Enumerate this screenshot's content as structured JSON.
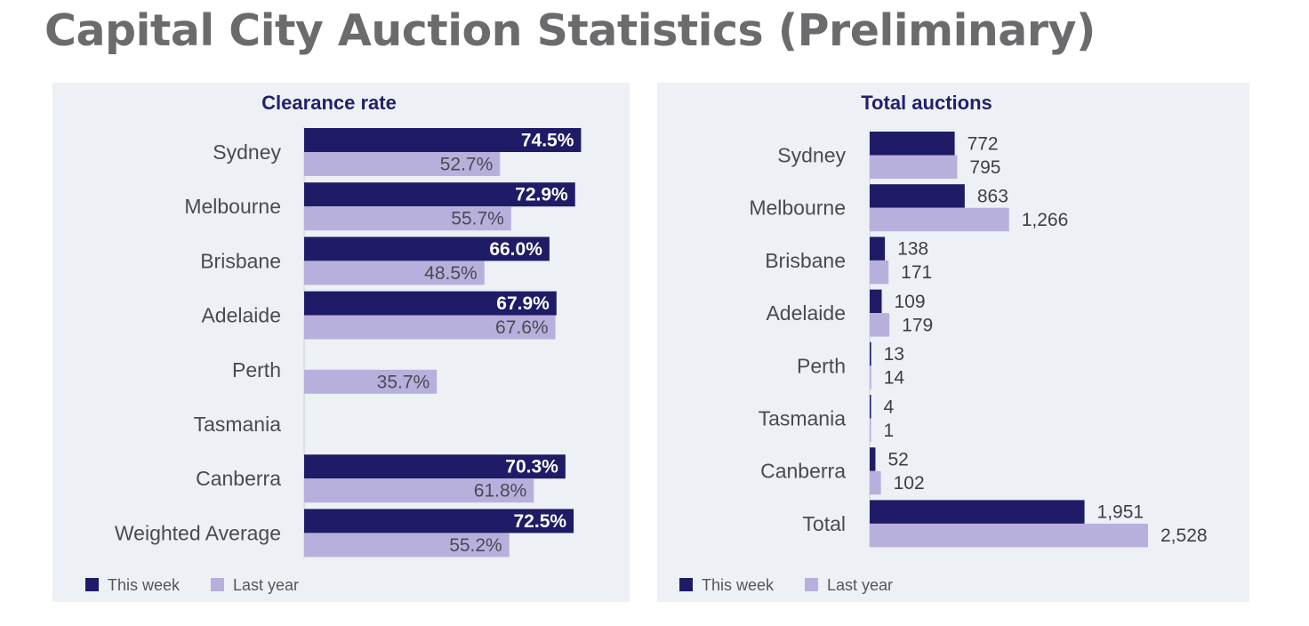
{
  "title": "Capital City Auction Statistics (Preliminary)",
  "colors": {
    "this_week": "#1f1b66",
    "last_year": "#b8b0dc",
    "panel_bg": "#edf1f5",
    "title_color": "#6b6b6e",
    "chart_title": "#24206b",
    "label": "#4a4a50"
  },
  "chart_data": [
    {
      "type": "bar",
      "orientation": "horizontal",
      "title": "Clearance rate",
      "categories": [
        "Sydney",
        "Melbourne",
        "Brisbane",
        "Adelaide",
        "Perth",
        "Tasmania",
        "Canberra",
        "Weighted Average"
      ],
      "series": [
        {
          "name": "This week",
          "values": [
            74.5,
            72.9,
            66.0,
            67.9,
            null,
            null,
            70.3,
            72.5
          ],
          "labels": [
            "74.5%",
            "72.9%",
            "66.0%",
            "67.9%",
            "",
            "",
            "70.3%",
            "72.5%"
          ]
        },
        {
          "name": "Last year",
          "values": [
            52.7,
            55.7,
            48.5,
            67.6,
            35.7,
            null,
            61.8,
            55.2
          ],
          "labels": [
            "52.7%",
            "55.7%",
            "48.5%",
            "67.6%",
            "35.7%",
            "",
            "61.8%",
            "55.2%"
          ]
        }
      ],
      "xlim": [
        0,
        100
      ],
      "legend": "bottom-left"
    },
    {
      "type": "bar",
      "orientation": "horizontal",
      "title": "Total auctions",
      "categories": [
        "Sydney",
        "Melbourne",
        "Brisbane",
        "Adelaide",
        "Perth",
        "Tasmania",
        "Canberra",
        "Total"
      ],
      "series": [
        {
          "name": "This week",
          "values": [
            772,
            863,
            138,
            109,
            13,
            4,
            52,
            1951
          ],
          "labels": [
            "772",
            "863",
            "138",
            "109",
            "13",
            "4",
            "52",
            "1,951"
          ]
        },
        {
          "name": "Last year",
          "values": [
            795,
            1266,
            171,
            179,
            14,
            1,
            102,
            2528
          ],
          "labels": [
            "795",
            "1,266",
            "171",
            "179",
            "14",
            "1",
            "102",
            "2,528"
          ]
        }
      ],
      "xlim": [
        0,
        2528
      ],
      "legend": "bottom-left"
    }
  ]
}
